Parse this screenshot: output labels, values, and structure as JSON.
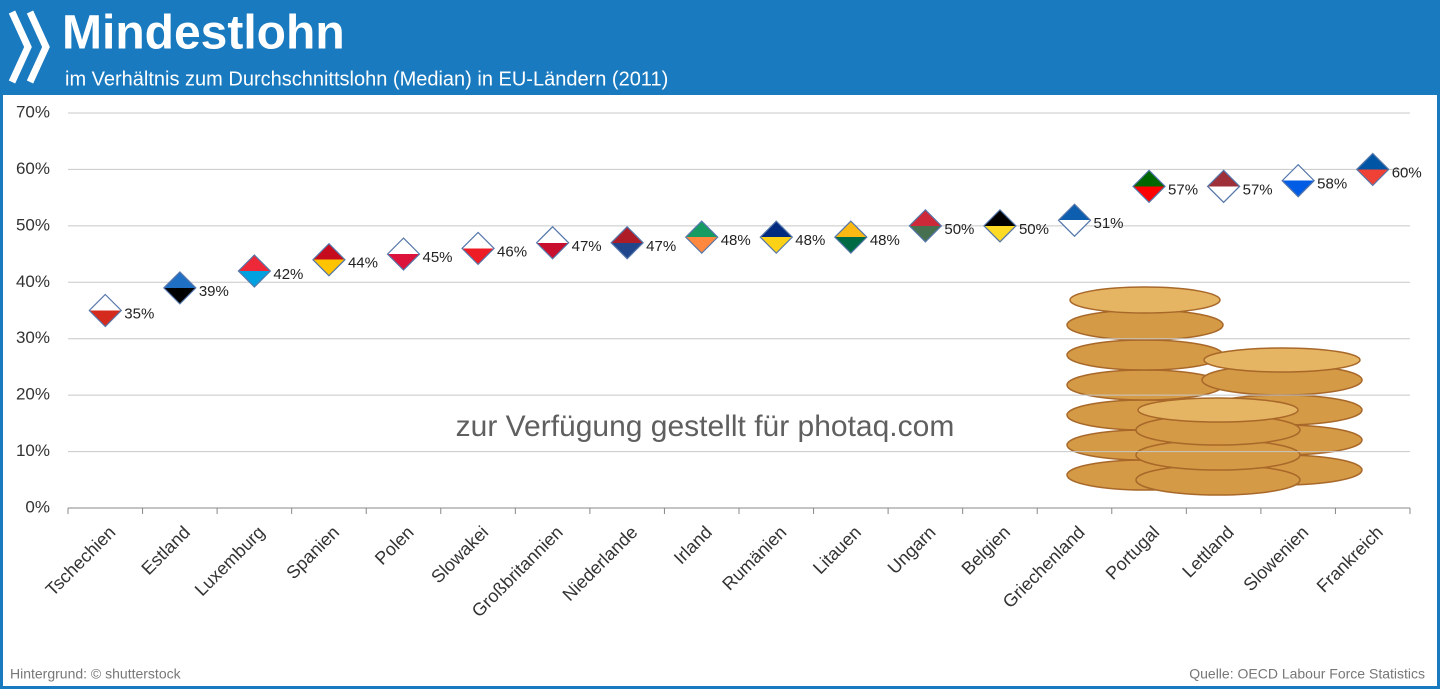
{
  "chart_data": {
    "type": "scatter",
    "title": "Mindestlohn",
    "subtitle": "im Verhältnis zum Durchschnittslohn (Median) in  EU-Ländern (2011)",
    "categories": [
      "Tschechien",
      "Estland",
      "Luxemburg",
      "Spanien",
      "Polen",
      "Slowakei",
      "Großbritannien",
      "Niederlande",
      "Irland",
      "Rumänien",
      "Litauen",
      "Ungarn",
      "Belgien",
      "Griechenland",
      "Portugal",
      "Lettland",
      "Slowenien",
      "Frankreich"
    ],
    "values": [
      35,
      39,
      42,
      44,
      45,
      46,
      47,
      47,
      48,
      48,
      48,
      50,
      50,
      51,
      57,
      57,
      58,
      60
    ],
    "value_labels": [
      "35%",
      "39%",
      "42%",
      "44%",
      "45%",
      "46%",
      "47%",
      "47%",
      "48%",
      "48%",
      "48%",
      "50%",
      "50%",
      "51%",
      "57%",
      "57%",
      "58%",
      "60%"
    ],
    "colors": [
      [
        "#ffffff",
        "#d52b1e"
      ],
      [
        "#1f6fc5",
        "#000000"
      ],
      [
        "#ed2939",
        "#00a1de"
      ],
      [
        "#c60b1e",
        "#ffc400"
      ],
      [
        "#ffffff",
        "#dc143c"
      ],
      [
        "#ffffff",
        "#ee1c25"
      ],
      [
        "#ffffff",
        "#c8102e"
      ],
      [
        "#ae1c28",
        "#21468b"
      ],
      [
        "#169b62",
        "#ff883e"
      ],
      [
        "#002b7f",
        "#fcd116"
      ],
      [
        "#fdb913",
        "#006a44"
      ],
      [
        "#ce2939",
        "#477050"
      ],
      [
        "#000000",
        "#fdda24"
      ],
      [
        "#0d5eaf",
        "#ffffff"
      ],
      [
        "#006600",
        "#ff0000"
      ],
      [
        "#9e3039",
        "#ffffff"
      ],
      [
        "#ffffff",
        "#005ce5"
      ],
      [
        "#0055a4",
        "#ef4135"
      ]
    ],
    "ylim": [
      0,
      70
    ],
    "yticks": [
      {
        "value": 0,
        "label": "0%"
      },
      {
        "value": 10,
        "label": "10%"
      },
      {
        "value": 20,
        "label": "20%"
      },
      {
        "value": 30,
        "label": "30%"
      },
      {
        "value": 40,
        "label": "40%"
      },
      {
        "value": 50,
        "label": "50%"
      },
      {
        "value": 60,
        "label": "60%"
      },
      {
        "value": 70,
        "label": "70%"
      }
    ],
    "grid": true,
    "watermark": "zur Verfügung gestellt für photaq.com",
    "credit": "Hintergrund: © shutterstock",
    "source": "Quelle: OECD Labour Force Statistics"
  }
}
